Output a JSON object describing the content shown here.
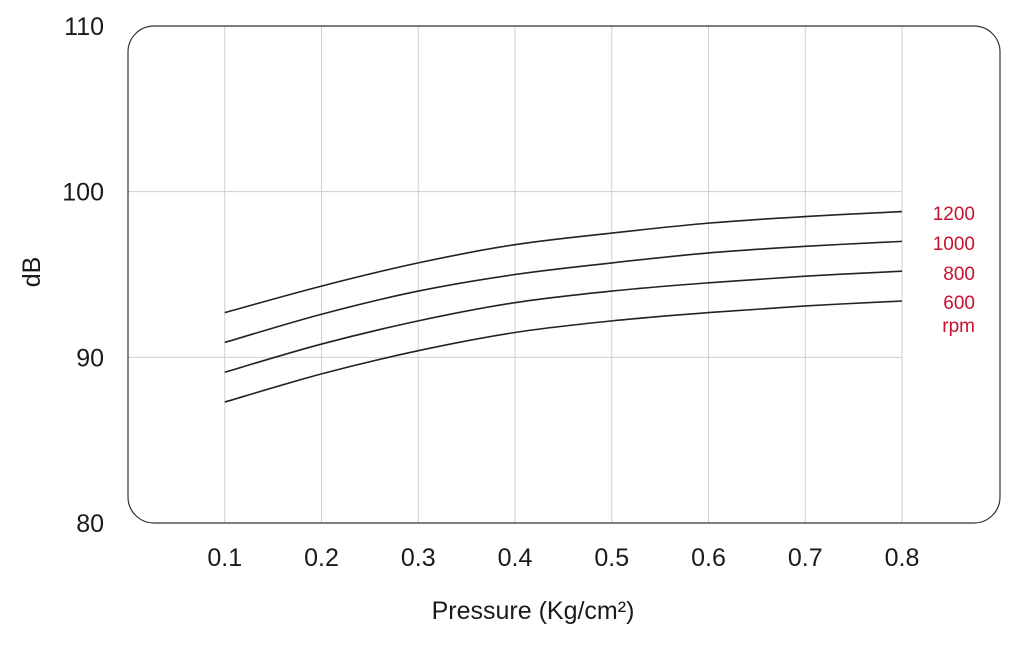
{
  "chart_data": {
    "type": "line",
    "xlabel": "Pressure (Kg/cm²)",
    "ylabel": "dB",
    "xlim": [
      0,
      0.8
    ],
    "ylim": [
      80,
      110
    ],
    "x_ticks": [
      "0.1",
      "0.2",
      "0.3",
      "0.4",
      "0.5",
      "0.6",
      "0.7",
      "0.8"
    ],
    "y_ticks": [
      "80",
      "90",
      "100",
      "110"
    ],
    "grid": true,
    "series_label_color": "#c8102e",
    "series_unit": "rpm",
    "x": [
      0.1,
      0.2,
      0.3,
      0.4,
      0.5,
      0.6,
      0.7,
      0.8
    ],
    "series": [
      {
        "name": "1200",
        "values": [
          92.7,
          94.3,
          95.7,
          96.8,
          97.5,
          98.1,
          98.5,
          98.8
        ]
      },
      {
        "name": "1000",
        "values": [
          90.9,
          92.6,
          94.0,
          95.0,
          95.7,
          96.3,
          96.7,
          97.0
        ]
      },
      {
        "name": "800",
        "values": [
          89.1,
          90.8,
          92.2,
          93.3,
          94.0,
          94.5,
          94.9,
          95.2
        ]
      },
      {
        "name": "600",
        "values": [
          87.3,
          89.0,
          90.4,
          91.5,
          92.2,
          92.7,
          93.1,
          93.4
        ]
      }
    ]
  }
}
